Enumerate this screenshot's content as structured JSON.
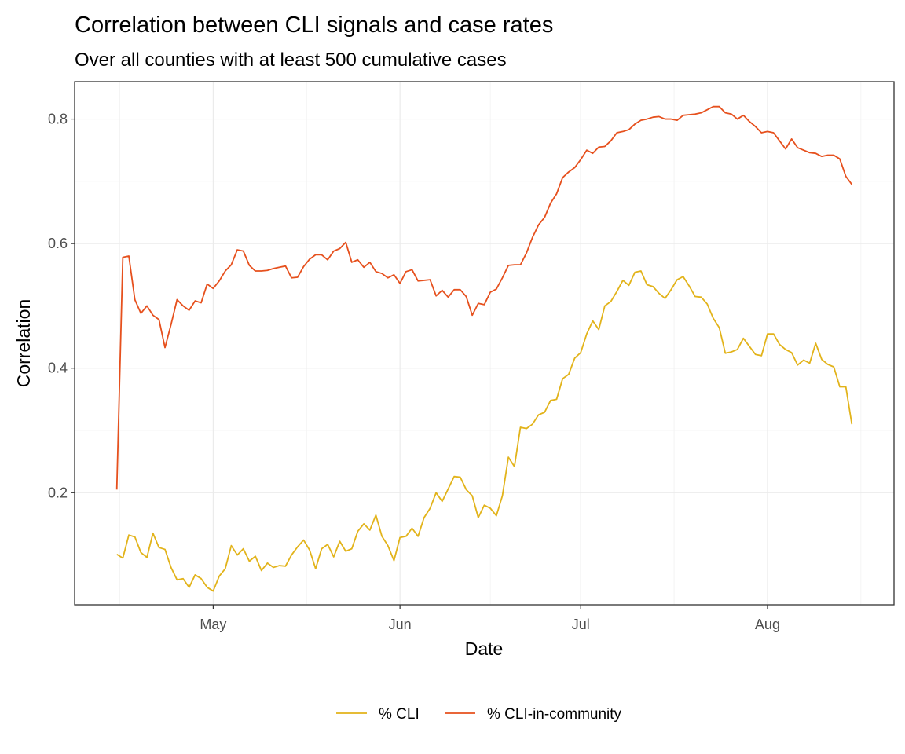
{
  "chart_data": {
    "type": "line",
    "title": "Correlation between CLI signals and case rates",
    "subtitle": "Over all counties with at least 500 cumulative cases",
    "xlabel": "Date",
    "ylabel": "Correlation",
    "x_ticks": [
      {
        "date": "2020-05-01",
        "label": "May"
      },
      {
        "date": "2020-06-01",
        "label": "Jun"
      },
      {
        "date": "2020-07-01",
        "label": "Jul"
      },
      {
        "date": "2020-08-01",
        "label": "Aug"
      }
    ],
    "y_ticks": [
      0.2,
      0.4,
      0.6,
      0.8
    ],
    "xlim": [
      "2020-04-08",
      "2020-08-22"
    ],
    "ylim": [
      0.02,
      0.86
    ],
    "grid": true,
    "legend_position": "bottom",
    "series": [
      {
        "name": "% CLI",
        "color": "#E2B31A",
        "start_date": "2020-04-15",
        "values": [
          0.101,
          0.095,
          0.132,
          0.129,
          0.104,
          0.096,
          0.135,
          0.112,
          0.109,
          0.08,
          0.06,
          0.062,
          0.048,
          0.068,
          0.062,
          0.048,
          0.042,
          0.066,
          0.078,
          0.115,
          0.1,
          0.11,
          0.09,
          0.098,
          0.075,
          0.087,
          0.08,
          0.083,
          0.082,
          0.1,
          0.113,
          0.124,
          0.108,
          0.078,
          0.11,
          0.117,
          0.097,
          0.122,
          0.106,
          0.11,
          0.138,
          0.15,
          0.14,
          0.164,
          0.13,
          0.115,
          0.091,
          0.128,
          0.13,
          0.143,
          0.13,
          0.16,
          0.175,
          0.2,
          0.186,
          0.206,
          0.226,
          0.225,
          0.205,
          0.195,
          0.16,
          0.18,
          0.175,
          0.163,
          0.195,
          0.257,
          0.242,
          0.305,
          0.303,
          0.31,
          0.325,
          0.329,
          0.348,
          0.35,
          0.383,
          0.39,
          0.416,
          0.425,
          0.455,
          0.476,
          0.462,
          0.5,
          0.507,
          0.523,
          0.541,
          0.533,
          0.554,
          0.556,
          0.534,
          0.531,
          0.52,
          0.512,
          0.526,
          0.542,
          0.547,
          0.532,
          0.515,
          0.514,
          0.503,
          0.48,
          0.465,
          0.424,
          0.426,
          0.43,
          0.448,
          0.435,
          0.422,
          0.42,
          0.455,
          0.455,
          0.438,
          0.43,
          0.425,
          0.405,
          0.413,
          0.408,
          0.44,
          0.414,
          0.406,
          0.402,
          0.37,
          0.37,
          0.31
        ]
      },
      {
        "name": "% CLI-in-community",
        "color": "#E6501D",
        "start_date": "2020-04-15",
        "values": [
          0.205,
          0.578,
          0.58,
          0.51,
          0.488,
          0.5,
          0.485,
          0.478,
          0.433,
          0.47,
          0.51,
          0.5,
          0.493,
          0.508,
          0.505,
          0.535,
          0.528,
          0.54,
          0.556,
          0.566,
          0.59,
          0.588,
          0.565,
          0.556,
          0.556,
          0.557,
          0.56,
          0.562,
          0.564,
          0.545,
          0.546,
          0.563,
          0.575,
          0.582,
          0.582,
          0.574,
          0.588,
          0.592,
          0.602,
          0.57,
          0.574,
          0.562,
          0.57,
          0.555,
          0.552,
          0.545,
          0.55,
          0.536,
          0.555,
          0.558,
          0.54,
          0.541,
          0.542,
          0.516,
          0.525,
          0.514,
          0.526,
          0.526,
          0.515,
          0.485,
          0.504,
          0.502,
          0.522,
          0.527,
          0.545,
          0.565,
          0.566,
          0.566,
          0.585,
          0.61,
          0.63,
          0.642,
          0.665,
          0.68,
          0.706,
          0.715,
          0.722,
          0.735,
          0.75,
          0.745,
          0.755,
          0.756,
          0.765,
          0.778,
          0.78,
          0.783,
          0.792,
          0.798,
          0.8,
          0.803,
          0.804,
          0.8,
          0.8,
          0.798,
          0.806,
          0.807,
          0.808,
          0.81,
          0.815,
          0.82,
          0.82,
          0.81,
          0.808,
          0.8,
          0.806,
          0.796,
          0.788,
          0.778,
          0.78,
          0.778,
          0.765,
          0.752,
          0.768,
          0.754,
          0.75,
          0.746,
          0.745,
          0.74,
          0.742,
          0.742,
          0.736,
          0.708,
          0.695
        ]
      }
    ]
  }
}
